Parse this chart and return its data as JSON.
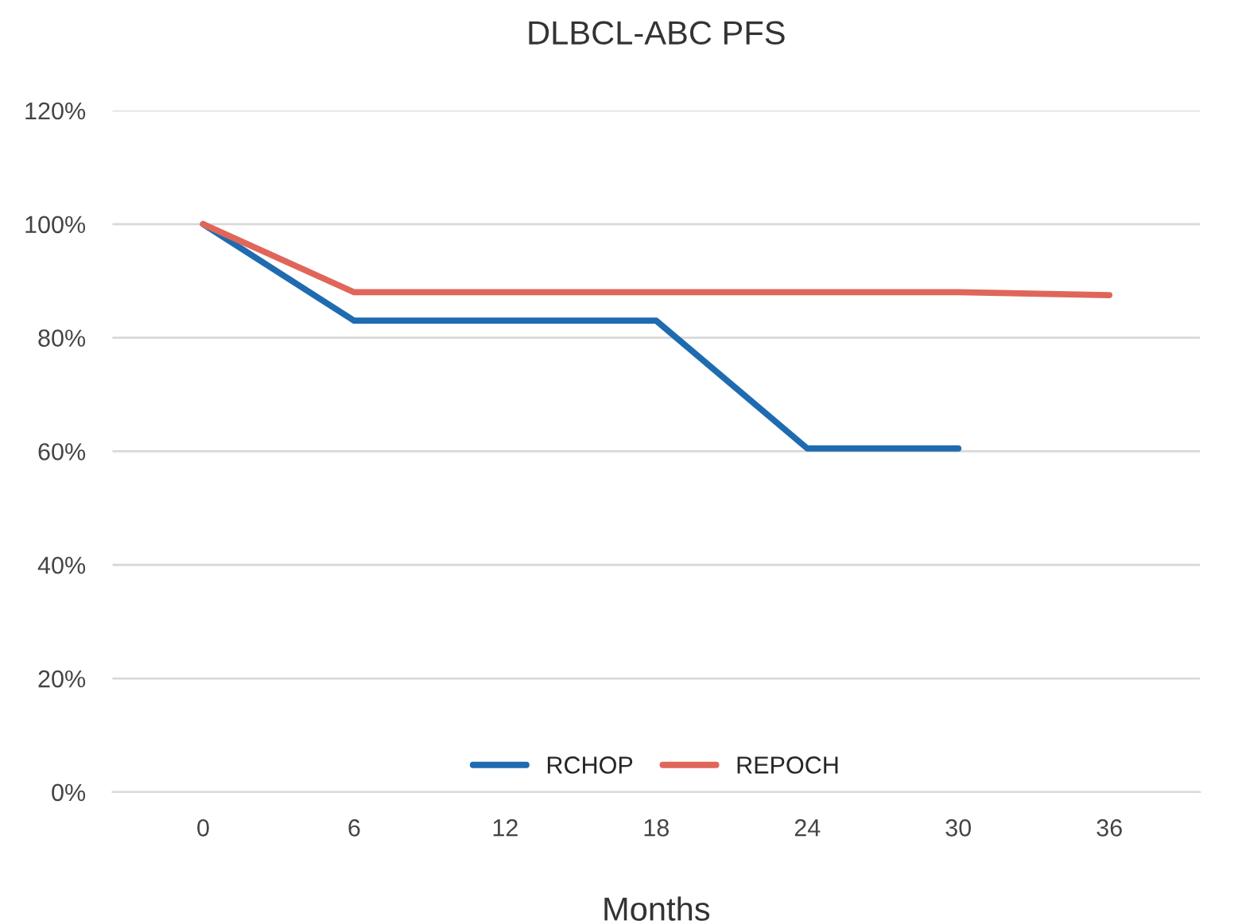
{
  "chart_data": {
    "type": "line",
    "title": "DLBCL-ABC PFS",
    "xlabel": "Months",
    "categories": [
      "0",
      "6",
      "12",
      "18",
      "24",
      "30",
      "36"
    ],
    "series": [
      {
        "name": "RCHOP",
        "color": "#1f6bb0",
        "values": [
          100,
          83,
          83,
          83,
          60.5,
          60.5,
          null
        ]
      },
      {
        "name": "REPOCH",
        "color": "#e0665a",
        "values": [
          100,
          88,
          88,
          88,
          88,
          88,
          87.5
        ]
      }
    ],
    "ylim": [
      0,
      120
    ],
    "yticks": [
      {
        "value": 0,
        "label": "0%"
      },
      {
        "value": 20,
        "label": "20%"
      },
      {
        "value": 40,
        "label": "40%"
      },
      {
        "value": 60,
        "label": "60%"
      },
      {
        "value": 80,
        "label": "80%"
      },
      {
        "value": 100,
        "label": "100%"
      },
      {
        "value": 120,
        "label": "120%"
      }
    ],
    "grid": "y",
    "legend": "bottom",
    "marker": "none",
    "line_style": "solid"
  }
}
